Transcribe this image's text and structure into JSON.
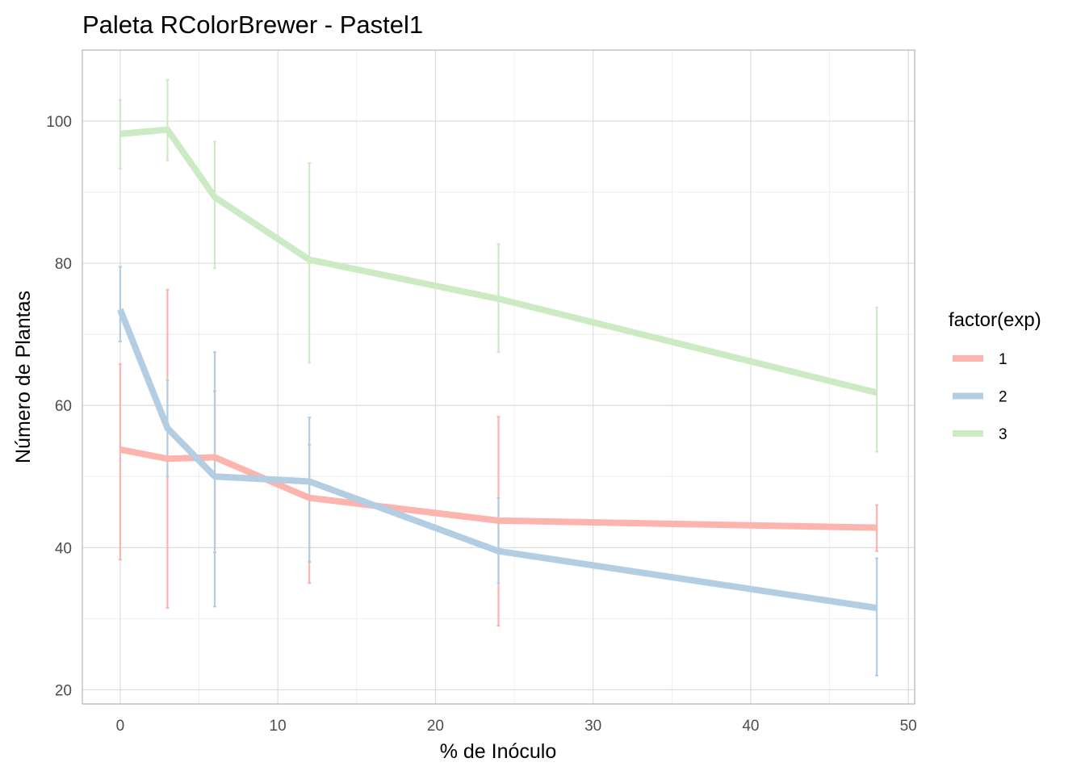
{
  "chart_data": {
    "type": "line",
    "title": "Paleta RColorBrewer - Pastel1",
    "xlabel": "% de Inóculo",
    "ylabel": "Número de Plantas",
    "xlim": [
      -2.4,
      50.4
    ],
    "ylim": [
      18,
      110
    ],
    "x_ticks": [
      0,
      10,
      20,
      30,
      40,
      50
    ],
    "y_ticks": [
      20,
      40,
      60,
      80,
      100
    ],
    "grid": true,
    "legend": {
      "title": "factor(exp)",
      "position": "right"
    },
    "series": [
      {
        "name": "1",
        "color": "#FBB4AE",
        "x": [
          0,
          3,
          6,
          12,
          24,
          48
        ],
        "y": [
          53.8,
          52.5,
          52.7,
          47.0,
          43.8,
          42.8
        ],
        "ymin": [
          38.3,
          31.5,
          39.3,
          35.0,
          29.0,
          39.5
        ],
        "ymax": [
          65.8,
          76.3,
          62.0,
          54.5,
          58.4,
          46.0
        ]
      },
      {
        "name": "2",
        "color": "#B3CDE3",
        "x": [
          0,
          3,
          6,
          12,
          24,
          48
        ],
        "y": [
          73.5,
          56.8,
          50.0,
          49.3,
          39.5,
          31.5
        ],
        "ymin": [
          69.0,
          50.0,
          31.7,
          38.0,
          35.0,
          22.0
        ],
        "ymax": [
          79.5,
          63.5,
          67.5,
          58.3,
          47.0,
          38.5
        ]
      },
      {
        "name": "3",
        "color": "#CCEBC5",
        "x": [
          0,
          3,
          6,
          12,
          24,
          48
        ],
        "y": [
          98.2,
          98.8,
          89.3,
          80.5,
          75.0,
          61.8
        ],
        "ymin": [
          93.3,
          94.5,
          79.3,
          66.0,
          67.5,
          53.5
        ],
        "ymax": [
          103.0,
          105.8,
          97.1,
          94.1,
          82.7,
          73.8
        ]
      }
    ]
  }
}
